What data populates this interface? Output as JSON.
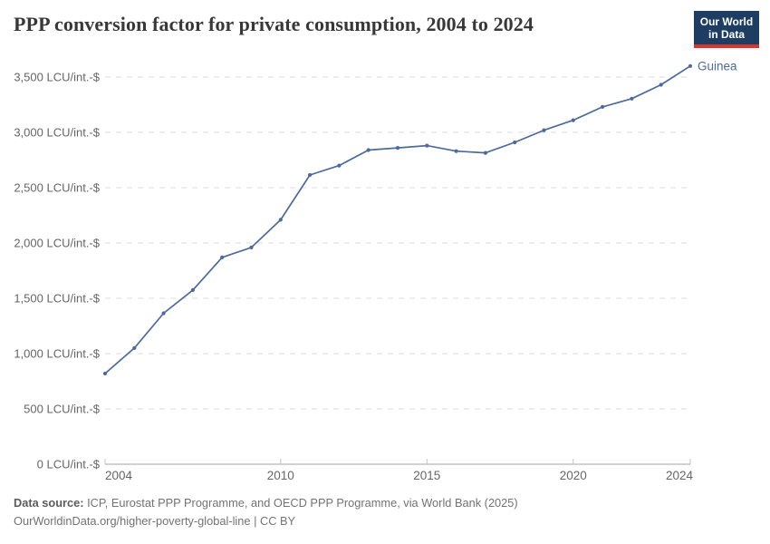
{
  "header": {
    "title": "PPP conversion factor for private consumption, 2004 to 2024",
    "logo": {
      "line1": "Our World",
      "line2": "in Data"
    }
  },
  "chart_data": {
    "type": "line",
    "title": "PPP conversion factor for private consumption, 2004 to 2024",
    "x": [
      2004,
      2005,
      2006,
      2007,
      2008,
      2009,
      2010,
      2011,
      2012,
      2013,
      2014,
      2015,
      2016,
      2017,
      2018,
      2019,
      2020,
      2021,
      2022,
      2023,
      2024
    ],
    "series": [
      {
        "name": "Guinea",
        "color": "#4C6A9C",
        "values": [
          820,
          1050,
          1365,
          1575,
          1870,
          1960,
          2210,
          2615,
          2700,
          2840,
          2860,
          2880,
          2830,
          2815,
          2910,
          3020,
          3110,
          3230,
          3305,
          3430,
          3600
        ]
      }
    ],
    "unit": "LCU/int.-$",
    "xlabel": "",
    "ylabel": "",
    "xlim": [
      2004,
      2024
    ],
    "ylim": [
      0,
      3500
    ],
    "x_ticks": [
      2004,
      2010,
      2015,
      2020,
      2024
    ],
    "y_ticks": [
      {
        "value": 0,
        "label": "0 LCU/int.-$"
      },
      {
        "value": 500,
        "label": "500 LCU/int.-$"
      },
      {
        "value": 1000,
        "label": "1,000 LCU/int.-$"
      },
      {
        "value": 1500,
        "label": "1,500 LCU/int.-$"
      },
      {
        "value": 2000,
        "label": "2,000 LCU/int.-$"
      },
      {
        "value": 2500,
        "label": "2,500 LCU/int.-$"
      },
      {
        "value": 3000,
        "label": "3,000 LCU/int.-$"
      },
      {
        "value": 3500,
        "label": "3,500 LCU/int.-$"
      }
    ],
    "grid": "horizontal-dashed",
    "legend_position": "line-end-label"
  },
  "footer": {
    "source_label": "Data source:",
    "source_text": " ICP, Eurostat PPP Programme, and OECD PPP Programme, via World Bank (2025)",
    "url": "OurWorldinData.org/higher-poverty-global-line",
    "separator": " | ",
    "license": "CC BY"
  },
  "colors": {
    "line": "#4C6A9C",
    "grid": "#dcdcdc",
    "axis": "#a5a5a5",
    "tick": "#c3c3c3",
    "tick_text": "#666666",
    "title_text": "#383838",
    "footer_text": "#737373",
    "logo_bg": "#1d3d63",
    "logo_red": "#d8352e"
  }
}
